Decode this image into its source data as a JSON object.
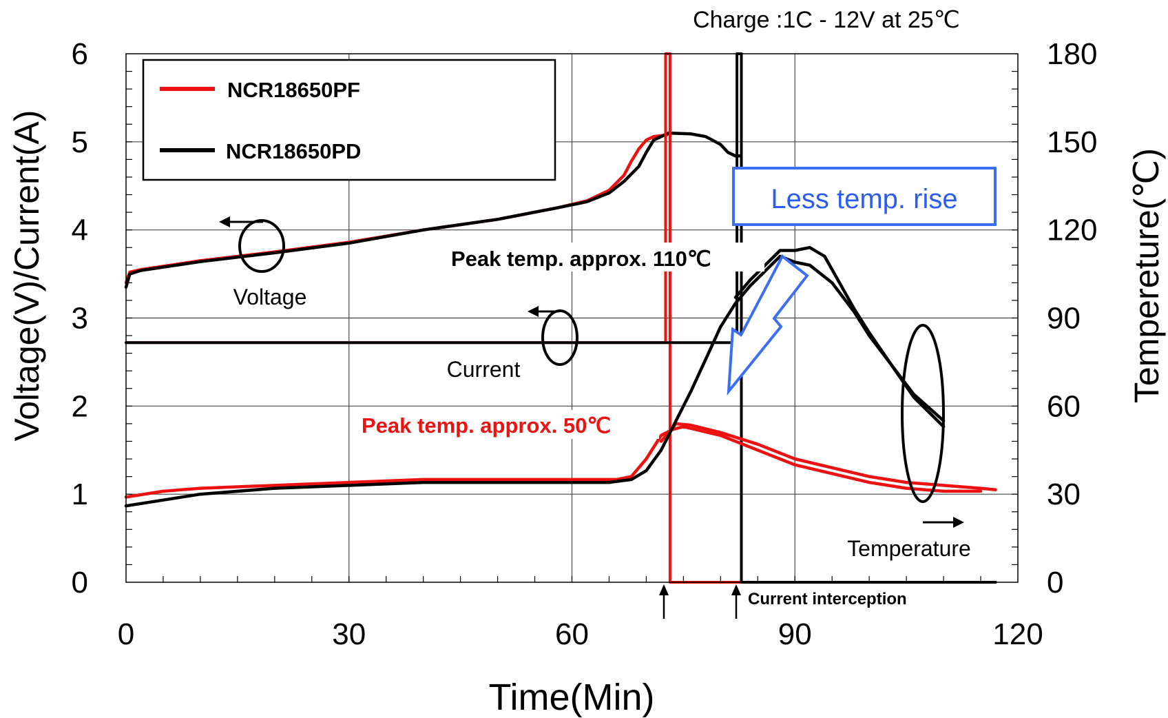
{
  "chart_data": {
    "type": "line",
    "title": "Charge :1C - 12V at 25℃",
    "xlabel": "Time(Min)",
    "ylabel": "Voltage(V)/Current(A)",
    "y2label": "Tempereture(℃)",
    "xlim": [
      0,
      120
    ],
    "ylim": [
      0,
      6
    ],
    "y2lim": [
      0,
      180
    ],
    "x_ticks": [
      "0",
      "30",
      "60",
      "90",
      "120"
    ],
    "y_ticks": [
      "0",
      "1",
      "2",
      "3",
      "4",
      "5",
      "6"
    ],
    "y2_ticks": [
      "0",
      "30",
      "60",
      "90",
      "120",
      "150",
      "180"
    ],
    "grid": true,
    "legend_position": "top-left",
    "legend": [
      {
        "name": "NCR18650PF",
        "color": "#ee1111"
      },
      {
        "name": "NCR18650PD",
        "color": "#000000"
      }
    ],
    "series": [
      {
        "name": "NCR18650PF",
        "quantity": "Voltage",
        "axis": "left",
        "color": "#ee1111",
        "x": [
          0,
          0.5,
          2,
          10,
          20,
          30,
          40,
          50,
          58,
          62,
          65,
          67,
          68,
          69,
          70,
          71,
          72,
          72.8
        ],
        "y": [
          3.4,
          3.52,
          3.55,
          3.65,
          3.75,
          3.86,
          4.0,
          4.12,
          4.25,
          4.33,
          4.45,
          4.62,
          4.78,
          4.92,
          5.02,
          5.06,
          5.07,
          5.08
        ]
      },
      {
        "name": "NCR18650PD",
        "quantity": "Voltage",
        "axis": "left",
        "color": "#000000",
        "x": [
          0,
          0.5,
          2,
          10,
          20,
          30,
          40,
          50,
          58,
          62,
          65,
          67,
          69,
          70,
          71,
          73,
          76,
          78,
          80,
          81,
          82,
          82.6
        ],
        "y": [
          3.35,
          3.5,
          3.54,
          3.64,
          3.74,
          3.85,
          4.0,
          4.12,
          4.25,
          4.32,
          4.42,
          4.55,
          4.72,
          4.88,
          5.02,
          5.1,
          5.09,
          5.06,
          4.97,
          4.88,
          4.84,
          4.84
        ]
      },
      {
        "name": "NCR18650PF",
        "quantity": "Current",
        "axis": "left",
        "color": "#ee1111",
        "x": [
          0,
          72.6,
          72.6,
          73.2,
          73.2,
          112,
          117
        ],
        "y": [
          2.72,
          2.72,
          6,
          6,
          0,
          0,
          0
        ]
      },
      {
        "name": "NCR18650PD",
        "quantity": "Current",
        "axis": "left",
        "color": "#000000",
        "x": [
          0,
          82.2,
          82.2,
          82.8,
          82.8,
          117
        ],
        "y": [
          2.72,
          2.72,
          6,
          6,
          0,
          0
        ]
      },
      {
        "name": "NCR18650PF",
        "quantity": "Temperature",
        "axis": "right",
        "color": "#ee1111",
        "x": [
          0,
          5,
          10,
          20,
          30,
          40,
          50,
          60,
          66,
          68,
          70,
          72,
          73.5,
          75,
          80,
          85,
          90,
          95,
          100,
          105,
          110,
          115
        ],
        "y": [
          29,
          31,
          32,
          33,
          34,
          35,
          35,
          35,
          35,
          36,
          42,
          50,
          52,
          53,
          50,
          45,
          40,
          37,
          34,
          32,
          31,
          31
        ]
      },
      {
        "name": "NCR18650PF",
        "quantity": "Temperature",
        "axis": "right",
        "color": "#ee1111",
        "x": [
          72,
          74,
          76,
          80,
          85,
          90,
          95,
          100,
          105,
          110,
          115,
          117
        ],
        "y": [
          48,
          54,
          53.5,
          51,
          47,
          42,
          39,
          36,
          34,
          33,
          32,
          31.5
        ]
      },
      {
        "name": "NCR18650PD",
        "quantity": "Temperature",
        "axis": "right",
        "color": "#000000",
        "x": [
          0,
          5,
          10,
          20,
          30,
          40,
          50,
          60,
          65,
          68,
          70,
          72,
          74,
          76,
          78,
          80,
          82,
          84,
          86,
          88,
          90,
          92,
          95,
          98,
          100,
          103,
          106,
          110
        ],
        "y": [
          26,
          28,
          30,
          32,
          33,
          34,
          34,
          34,
          34,
          35,
          38,
          45,
          55,
          65,
          76,
          87,
          95,
          101,
          106,
          111,
          109,
          108,
          102,
          92,
          84,
          74,
          63,
          53
        ]
      },
      {
        "name": "NCR18650PD",
        "quantity": "Temperature",
        "axis": "right",
        "color": "#000000",
        "x": [
          82,
          84,
          86,
          88,
          90,
          92,
          94,
          96,
          98,
          100,
          103,
          106,
          110
        ],
        "y": [
          97,
          103,
          108,
          113,
          113,
          114,
          111,
          102,
          93,
          85,
          74,
          64,
          55
        ]
      }
    ],
    "annotations": {
      "voltage": "Voltage",
      "current": "Current",
      "temperature": "Temperature",
      "peak_pd": "Peak temp. approx. 110℃",
      "peak_pf": "Peak temp. approx. 50℃",
      "less_temp_rise": "Less temp. rise",
      "current_interception": "Current interception"
    }
  }
}
